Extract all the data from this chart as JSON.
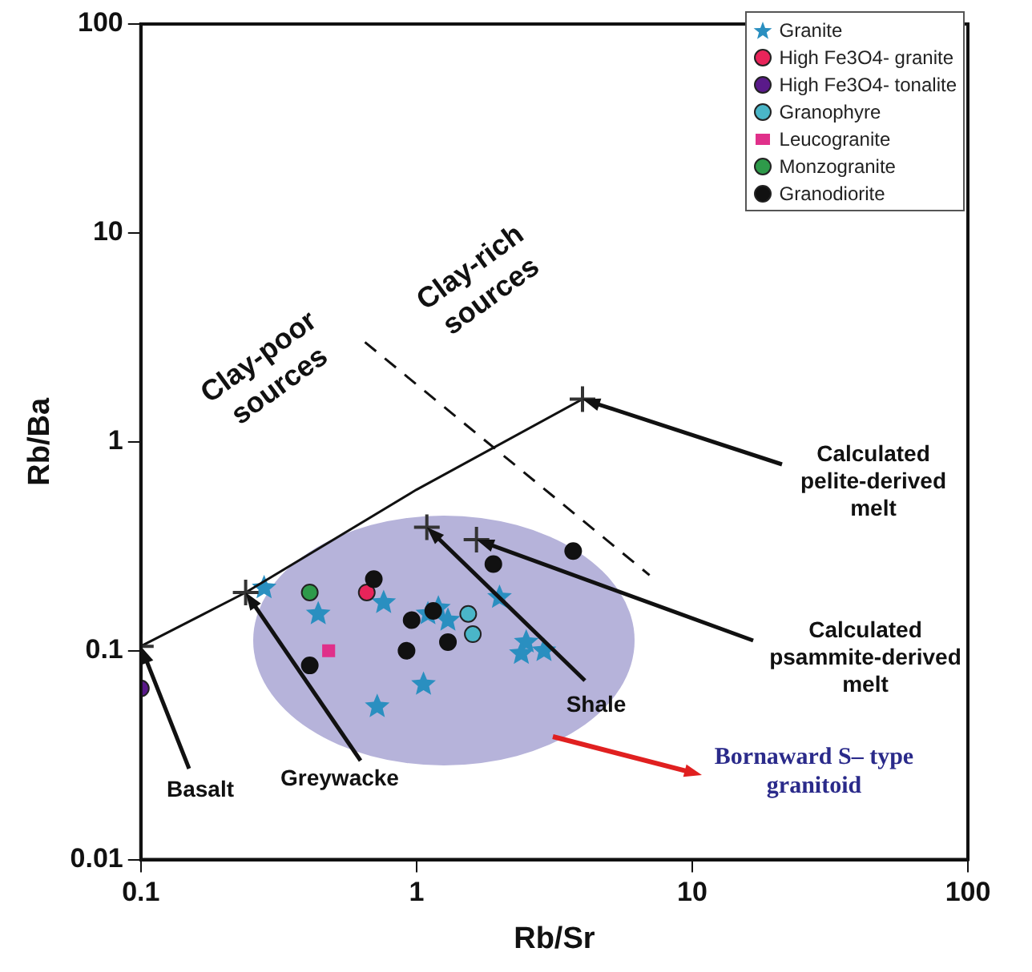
{
  "chart_data": {
    "type": "scatter",
    "xlabel": "Rb/Sr",
    "ylabel": "Rb/Ba",
    "log": "xy",
    "xlim": [
      0.1,
      100
    ],
    "ylim": [
      0.01,
      100
    ],
    "xticks": [
      0.1,
      1,
      10,
      100
    ],
    "yticks": [
      0.01,
      0.1,
      1,
      10,
      100
    ],
    "grid": false,
    "legend": "top right",
    "series": [
      {
        "name": "Granite",
        "color": "#2a8fc0",
        "marker": "star",
        "x": [
          0.28,
          0.76,
          0.44,
          1.2,
          1.1,
          1.3,
          2.0,
          2.5,
          2.4,
          2.9,
          1.06,
          0.72
        ],
        "values": [
          0.2,
          0.17,
          0.15,
          0.16,
          0.15,
          0.14,
          0.18,
          0.11,
          0.097,
          0.1,
          0.069,
          0.054
        ]
      },
      {
        "name": "High Fe3O4- granite",
        "color": "#e8245a",
        "marker": "circle",
        "x": [
          0.66
        ],
        "values": [
          0.19
        ]
      },
      {
        "name": "High Fe3O4- tonalite",
        "color": "#5a1a8a",
        "marker": "circle",
        "x": [
          0.1
        ],
        "values": [
          0.066
        ]
      },
      {
        "name": "Granophyre",
        "color": "#4ab6c8",
        "marker": "circle",
        "x": [
          1.54,
          1.6
        ],
        "values": [
          0.15,
          0.12
        ]
      },
      {
        "name": "Leucogranite",
        "color": "#e0308a",
        "marker": "square",
        "x": [
          0.48
        ],
        "values": [
          0.1
        ]
      },
      {
        "name": "Monzogranite",
        "color": "#2e9a4a",
        "marker": "circle",
        "x": [
          0.41
        ],
        "values": [
          0.19
        ]
      },
      {
        "name": "Granodiorite",
        "color": "#111111",
        "marker": "circle",
        "x": [
          0.7,
          0.96,
          0.92,
          1.15,
          1.3,
          1.9,
          3.7,
          0.41
        ],
        "values": [
          0.22,
          0.14,
          0.1,
          0.155,
          0.11,
          0.26,
          0.3,
          0.085
        ]
      },
      {
        "type": "line",
        "color": "#111111",
        "marker": "none",
        "line_style": "solid",
        "x": [
          0.1,
          0.24,
          1.0,
          4
        ],
        "values": [
          0.105,
          0.19,
          0.59,
          1.6
        ]
      },
      {
        "type": "line",
        "color": "#111111",
        "marker": "none",
        "line_style": "dashed",
        "x": [
          0.65,
          7.0
        ],
        "values": [
          3.0,
          0.23
        ]
      },
      {
        "color": "#333333",
        "marker": "cross",
        "x": [
          0.1,
          0.24,
          1.09,
          1.65,
          4
        ],
        "values": [
          0.105,
          0.19,
          0.39,
          0.34,
          1.6
        ]
      }
    ],
    "annotations": [
      "Clay-poor sources",
      "Clay-rich sources",
      {
        "text": "Calculated pelite-derived melt",
        "x": 4,
        "y": 1.6
      },
      {
        "text": "Calculated psammite-derived melt",
        "x": 1.65,
        "y": 0.34
      },
      {
        "text": "Shale",
        "x": 1.09,
        "y": 0.39
      },
      {
        "text": "Greywacke",
        "x": 0.24,
        "y": 0.19
      },
      {
        "text": "Basalt",
        "x": 0.1,
        "y": 0.105
      },
      "Bornaward S– type granitoid"
    ]
  }
}
